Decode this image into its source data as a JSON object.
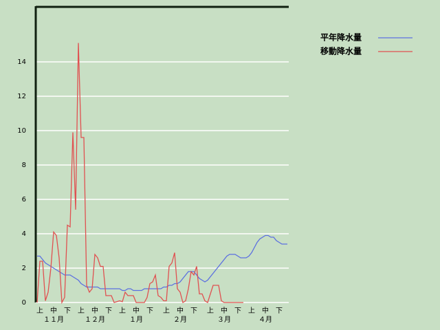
{
  "chart_data": {
    "type": "line",
    "categories": [
      null,
      "上",
      null,
      null,
      null,
      null,
      "中",
      null,
      null,
      null,
      null,
      "下",
      null,
      null,
      null,
      null,
      "上",
      null,
      null,
      null,
      null,
      "中",
      null,
      null,
      null,
      null,
      "下",
      null,
      null,
      null,
      null,
      "上",
      null,
      null,
      null,
      null,
      "中",
      null,
      null,
      null,
      null,
      "下",
      null,
      null,
      null,
      null,
      null,
      "上",
      null,
      null,
      null,
      null,
      "中",
      null,
      null,
      null,
      null,
      "下",
      null,
      null,
      null,
      null,
      null,
      "上",
      null,
      null,
      null,
      null,
      "中",
      null,
      null,
      null,
      null,
      "下",
      null,
      null,
      null,
      null,
      "上",
      null,
      null,
      null,
      null,
      "中",
      null,
      null,
      null,
      null,
      "下",
      null,
      null,
      null
    ],
    "months": [
      "１１月",
      "１２月",
      "１月",
      "２月",
      "３月",
      "４月"
    ],
    "series": [
      {
        "name": "平年降水量",
        "color": "#5b6fe0",
        "values": [
          2.7,
          2.7,
          2.5,
          2.3,
          2.2,
          2.1,
          2.0,
          1.9,
          1.8,
          1.7,
          1.6,
          1.6,
          1.6,
          1.5,
          1.4,
          1.3,
          1.1,
          1.0,
          0.9,
          0.9,
          0.9,
          0.9,
          0.9,
          0.8,
          0.8,
          0.8,
          0.8,
          0.8,
          0.8,
          0.8,
          0.8,
          0.7,
          0.7,
          0.8,
          0.8,
          0.7,
          0.7,
          0.7,
          0.7,
          0.8,
          0.8,
          0.8,
          0.8,
          0.8,
          0.8,
          0.8,
          0.9,
          0.9,
          1.0,
          1.0,
          1.1,
          1.1,
          1.2,
          1.4,
          1.6,
          1.8,
          1.8,
          1.8,
          1.6,
          1.4,
          1.3,
          1.2,
          1.3,
          1.5,
          1.7,
          1.9,
          2.1,
          2.3,
          2.5,
          2.7,
          2.8,
          2.8,
          2.8,
          2.7,
          2.6,
          2.6,
          2.6,
          2.7,
          2.9,
          3.2,
          3.5,
          3.7,
          3.8,
          3.9,
          3.9,
          3.8,
          3.8,
          3.6,
          3.5,
          3.4,
          3.4,
          3.4
        ]
      },
      {
        "name": "移動降水量",
        "color": "#e05050",
        "values": [
          0,
          2.4,
          2.4,
          0.1,
          0.6,
          2.0,
          4.1,
          3.9,
          2.6,
          0,
          0.3,
          4.5,
          4.4,
          9.9,
          5.4,
          15.1,
          9.6,
          9.6,
          1.0,
          0.6,
          0.8,
          2.8,
          2.6,
          2.1,
          2.1,
          0.4,
          0.4,
          0.4,
          0,
          0.05,
          0.1,
          0.05,
          0.6,
          0.4,
          0.4,
          0.4,
          0,
          0,
          0,
          0,
          0.3,
          1.1,
          1.2,
          1.6,
          0.4,
          0.3,
          0.1,
          0.1,
          2.1,
          2.3,
          2.9,
          0.8,
          0.6,
          0,
          0.1,
          0.8,
          1.8,
          1.6,
          2.1,
          0.5,
          0.5,
          0.1,
          0,
          0.5,
          1.0,
          1.0,
          1.0,
          0.1,
          0,
          0,
          0,
          0,
          0,
          0,
          0,
          0,
          null,
          null,
          null,
          null,
          null,
          null,
          null,
          null,
          null,
          null,
          null,
          null,
          null,
          null,
          null,
          null
        ]
      }
    ],
    "ylim": [
      0,
      17.2
    ],
    "yticks": [
      0,
      2,
      4,
      6,
      8,
      10,
      12,
      14
    ],
    "grid": true,
    "legend": "right"
  }
}
